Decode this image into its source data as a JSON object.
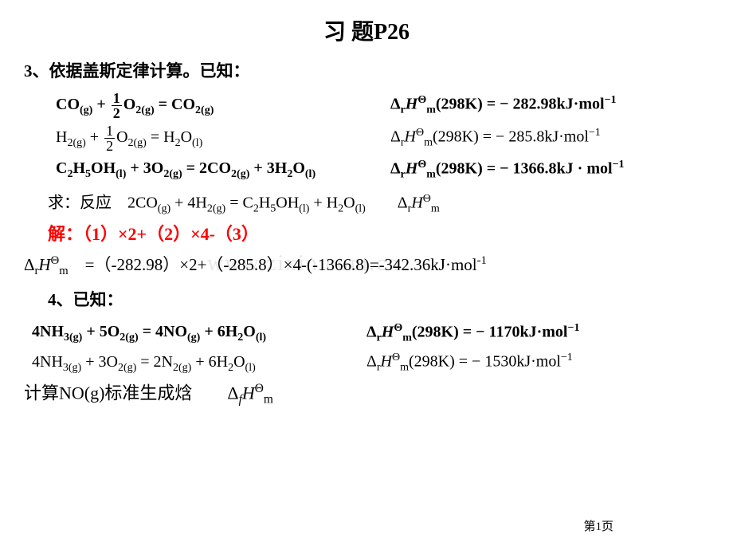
{
  "title": "习  题P26",
  "q3": {
    "header": "3、依据盖斯定律计算。已知：",
    "eq1": {
      "lhs": "CO<sub>(g)</sub> + <span class='frac'><span class='frac-top'>1</span><span class='frac-bot'>2</span></span>O<sub>2(g)</sub> = CO<sub>2(g)</sub>",
      "rhs": "Δ<sub>r</sub><i>H</i><sup>Θ</sup><sub>m</sub>(298K) = − 282.98kJ·mol<sup>−1</sup>",
      "lb": true,
      "rb": true
    },
    "eq2": {
      "lhs": "H<sub>2(g)</sub> + <span class='frac'><span class='frac-top'>1</span><span class='frac-bot'>2</span></span>O<sub>2(g)</sub> = H<sub>2</sub>O<sub>(l)</sub>",
      "rhs": "Δ<sub>r</sub><i>H</i><sup>Θ</sup><sub>m</sub>(298K) = − 285.8kJ·mol<sup>−1</sup>",
      "lb": false,
      "rb": false
    },
    "eq3": {
      "lhs": "C<sub>2</sub>H<sub>5</sub>OH<sub>(l)</sub> + 3O<sub>2(g)</sub> = 2CO<sub>2(g)</sub> + 3H<sub>2</sub>O<sub>(l)</sub>",
      "rhs": "Δ<sub>r</sub><i>H</i><sup>Θ</sup><sub>m</sub>(298K) = − 1366.8kJ · mol<sup>−1</sup>",
      "lb": true,
      "rb": true
    },
    "ask": "求：反应　2CO<sub>(g)</sub> + 4H<sub>2(g)</sub> = C<sub>2</sub>H<sub>5</sub>OH<sub>(l)</sub> + H<sub>2</sub>O<sub>(l)</sub>　　Δ<sub>r</sub><i>H</i><sup>Θ</sup><sub>m</sub>",
    "sol_label": "解：（1）×2+（2）×4-（3）",
    "sol_value": "Δ<sub>r</sub><i>H</i><sup>Θ</sup><sub>m</sub>　=（-282.98）×2+（-285.8）×4-(-1366.8)=-342.36kJ·mol<sup>-1</sup>"
  },
  "q4": {
    "header": "4、已知：",
    "eq1": {
      "lhs": "4NH<sub>3(g)</sub> + 5O<sub>2(g)</sub> = 4NO<sub>(g)</sub> + 6H<sub>2</sub>O<sub>(l)</sub>",
      "rhs": "Δ<sub>r</sub><i>H</i><sup>Θ</sup><sub>m</sub>(298K) = − 1170kJ·mol<sup>−1</sup>",
      "lb": true,
      "rb": true
    },
    "eq2": {
      "lhs": "4NH<sub>3(g)</sub> + 3O<sub>2(g)</sub> = 2N<sub>2(g)</sub> + 6H<sub>2</sub>O<sub>(l)</sub>",
      "rhs": "Δ<sub>r</sub><i>H</i><sup>Θ</sup><sub>m</sub>(298K) = − 1530kJ·mol<sup>−1</sup>",
      "lb": false,
      "rb": false
    },
    "ask": "计算NO(g)标准生成焓　　Δ<sub><i>f</i></sub><i>H</i><sup>Θ</sup><sub>m</sub>"
  },
  "watermark": "www.zixin.com.cn",
  "pagenum": "第1页",
  "colors": {
    "red": "#ff0000",
    "text": "#000000",
    "bg": "#ffffff",
    "wm": "#e8e8e8"
  }
}
